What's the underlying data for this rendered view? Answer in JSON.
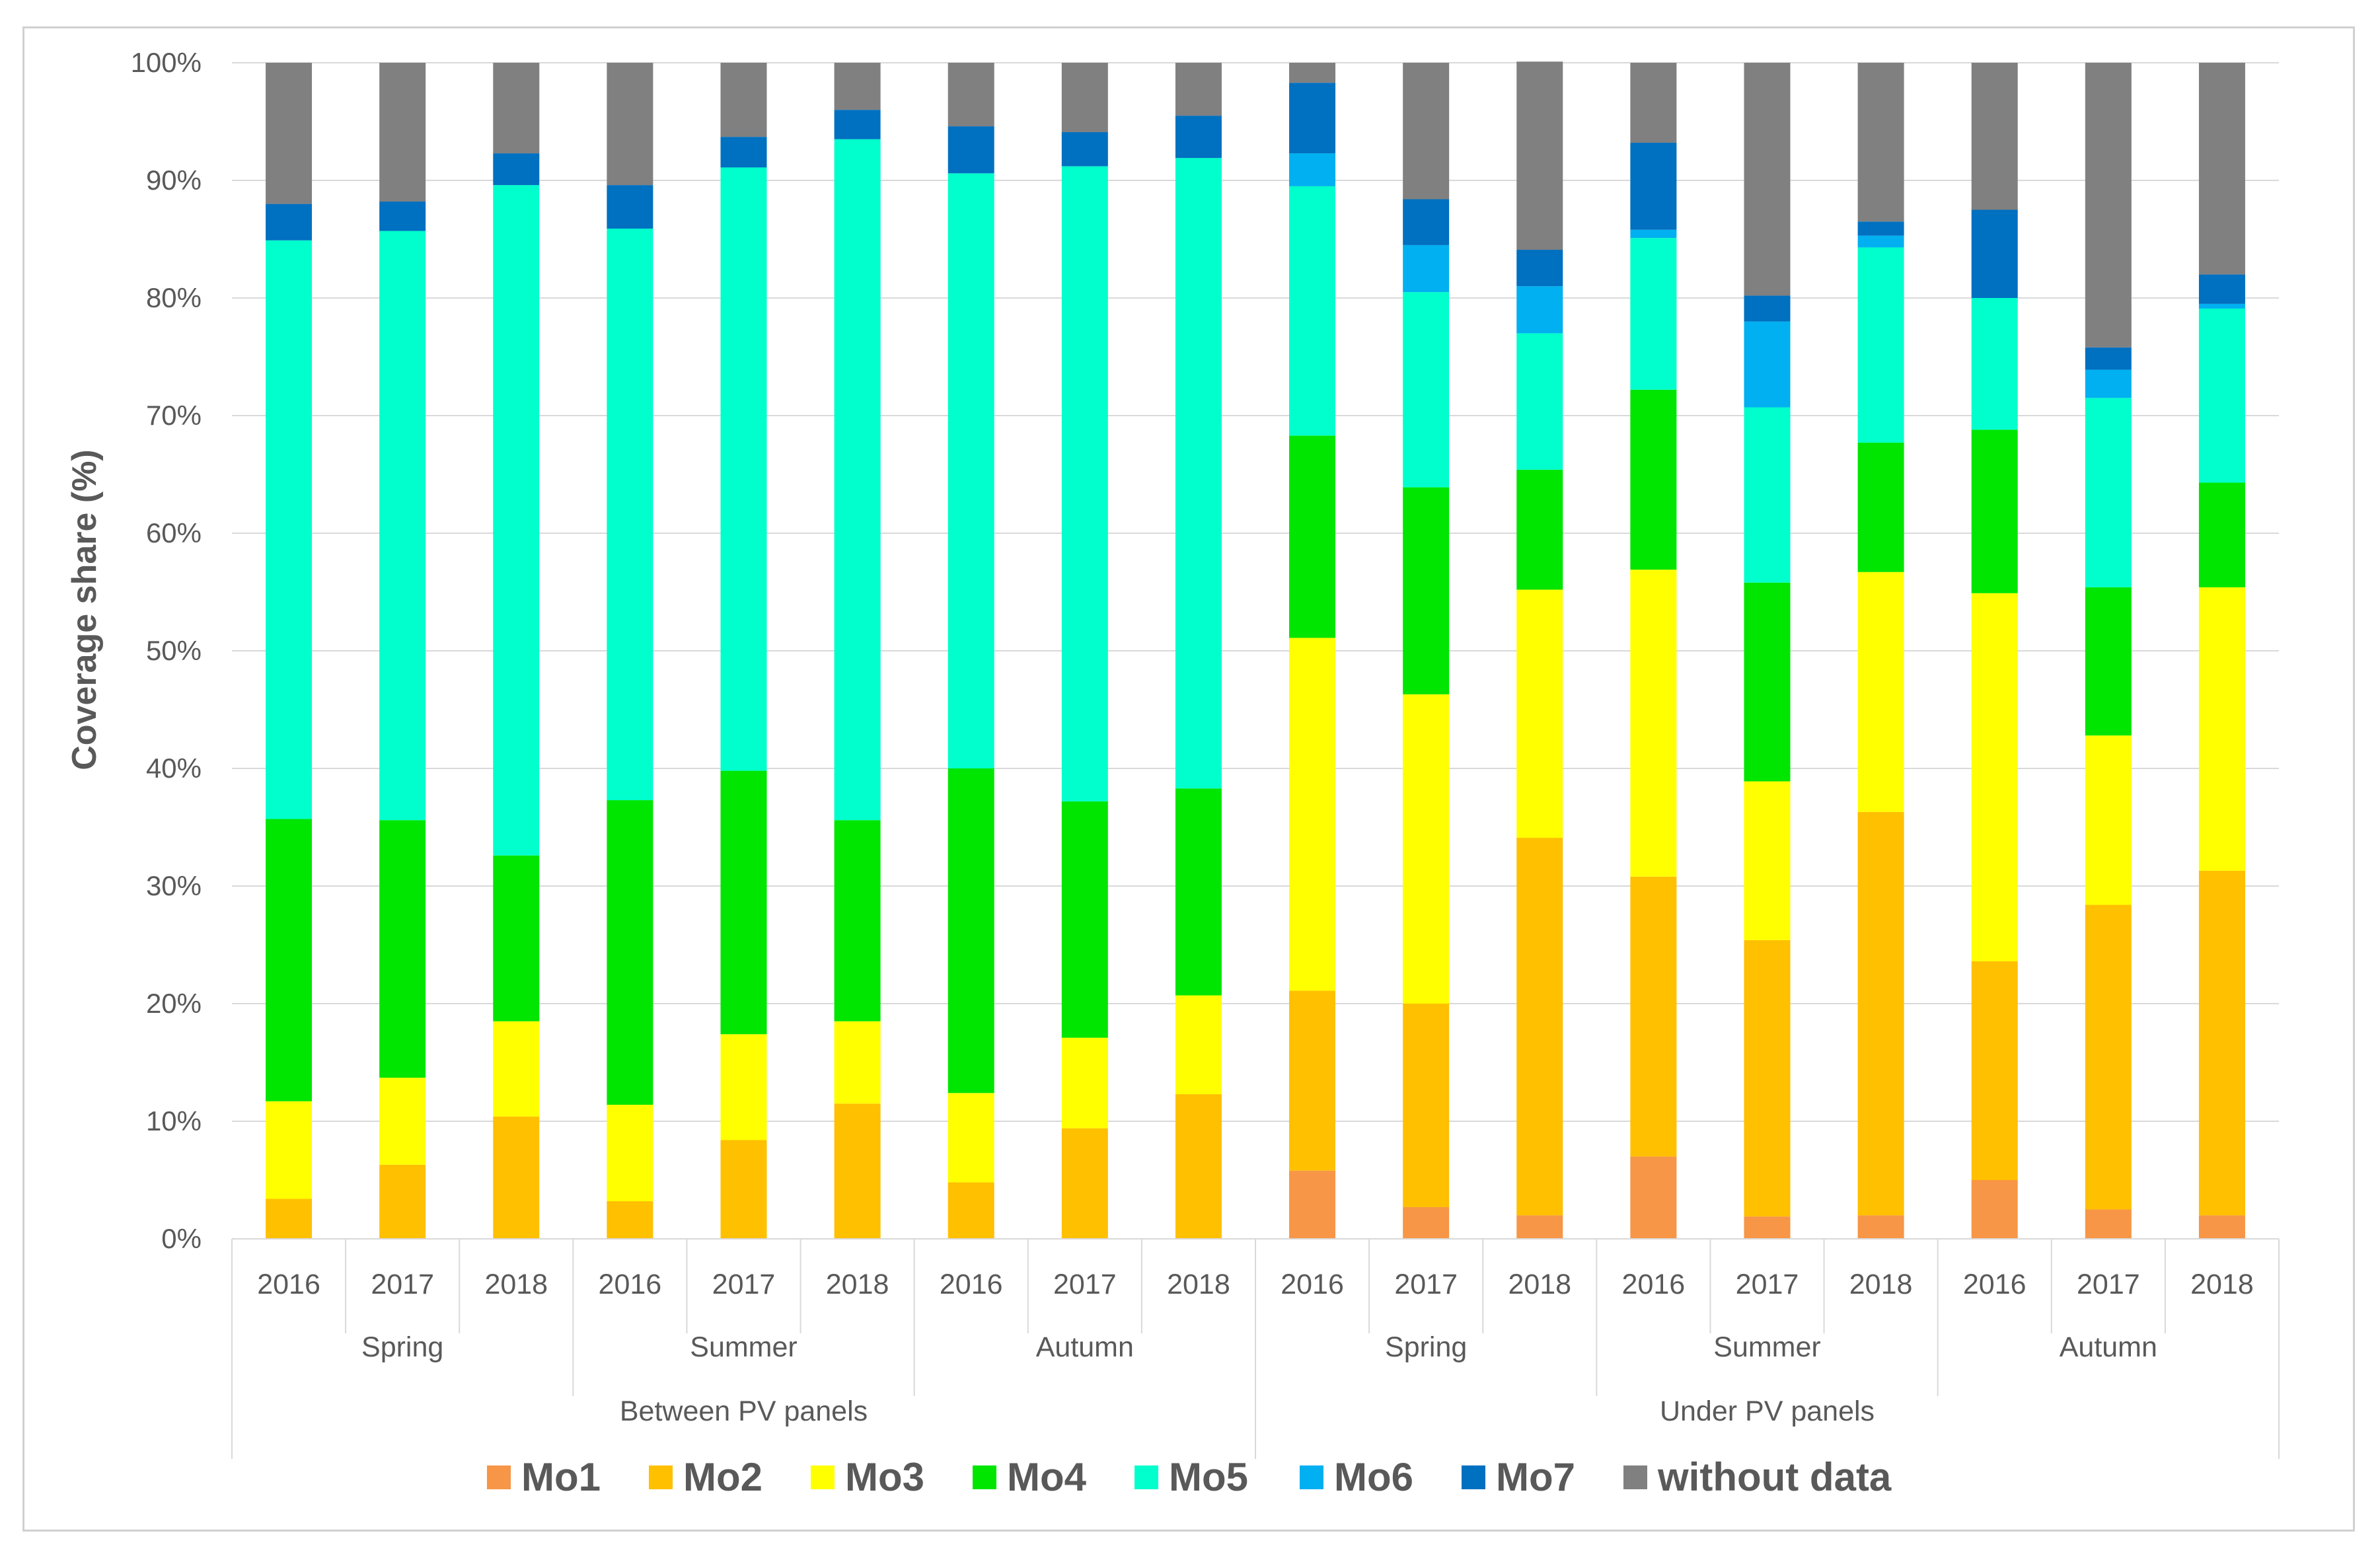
{
  "chart_data": {
    "type": "bar",
    "stacked": true,
    "title": "",
    "xlabel": "",
    "ylabel": "Coverage share (%)",
    "ylim": [
      0,
      100
    ],
    "y_ticks": [
      "0%",
      "10%",
      "20%",
      "30%",
      "40%",
      "50%",
      "60%",
      "70%",
      "80%",
      "90%",
      "100%"
    ],
    "grid": true,
    "legend_position": "bottom",
    "groups": [
      {
        "label": "Between PV panels",
        "seasons": [
          {
            "label": "Spring",
            "years": [
              "2016",
              "2017",
              "2018"
            ]
          },
          {
            "label": "Summer",
            "years": [
              "2016",
              "2017",
              "2018"
            ]
          },
          {
            "label": "Autumn",
            "years": [
              "2016",
              "2017",
              "2018"
            ]
          }
        ]
      },
      {
        "label": "Under PV panels",
        "seasons": [
          {
            "label": "Spring",
            "years": [
              "2016",
              "2017",
              "2018"
            ]
          },
          {
            "label": "Summer",
            "years": [
              "2016",
              "2017",
              "2018"
            ]
          },
          {
            "label": "Autumn",
            "years": [
              "2016",
              "2017",
              "2018"
            ]
          }
        ]
      }
    ],
    "series": [
      {
        "name": "Mo1",
        "color": "#f79646",
        "values": [
          0,
          0,
          0,
          0,
          0,
          0,
          0,
          0,
          0,
          5.8,
          2.7,
          2.0,
          7.0,
          1.9,
          2.0,
          5.0,
          2.5,
          2.0
        ]
      },
      {
        "name": "Mo2",
        "color": "#ffc000",
        "values": [
          3.4,
          6.3,
          10.4,
          3.2,
          8.4,
          11.5,
          4.8,
          9.4,
          12.3,
          15.3,
          17.3,
          32.1,
          23.8,
          23.5,
          34.3,
          18.6,
          25.9,
          29.3
        ]
      },
      {
        "name": "Mo3",
        "color": "#ffff00",
        "values": [
          8.3,
          7.4,
          8.1,
          8.2,
          9.0,
          7.0,
          7.6,
          7.7,
          8.4,
          30.0,
          26.3,
          21.1,
          26.1,
          13.5,
          20.4,
          31.3,
          14.4,
          24.1
        ]
      },
      {
        "name": "Mo4",
        "color": "#00e600",
        "values": [
          24.0,
          21.9,
          14.1,
          25.9,
          22.4,
          17.1,
          27.6,
          20.1,
          17.6,
          17.2,
          17.6,
          10.2,
          15.3,
          16.9,
          11.0,
          13.9,
          12.6,
          8.9
        ]
      },
      {
        "name": "Mo5",
        "color": "#00ffcc",
        "values": [
          49.2,
          50.1,
          57.0,
          48.6,
          51.3,
          57.9,
          50.6,
          54.0,
          53.6,
          21.2,
          16.6,
          11.6,
          12.9,
          14.9,
          16.6,
          11.2,
          16.1,
          14.8
        ]
      },
      {
        "name": "Mo6",
        "color": "#00b0f0",
        "values": [
          0,
          0,
          0,
          0,
          0,
          0,
          0,
          0,
          0,
          2.8,
          4.0,
          4.0,
          0.7,
          7.3,
          1.0,
          0,
          2.4,
          0.4
        ]
      },
      {
        "name": "Mo7",
        "color": "#0070c0",
        "values": [
          3.1,
          2.5,
          2.7,
          3.7,
          2.6,
          2.5,
          4.0,
          2.9,
          3.6,
          6.0,
          3.9,
          3.1,
          7.4,
          2.2,
          1.2,
          7.5,
          1.9,
          2.5
        ]
      },
      {
        "name": "without data",
        "color": "#808080",
        "values": [
          12.0,
          11.8,
          7.7,
          10.4,
          6.3,
          4.0,
          5.4,
          5.9,
          4.5,
          1.7,
          11.6,
          16.0,
          6.8,
          19.8,
          13.5,
          12.5,
          24.2,
          18.0
        ]
      }
    ]
  }
}
